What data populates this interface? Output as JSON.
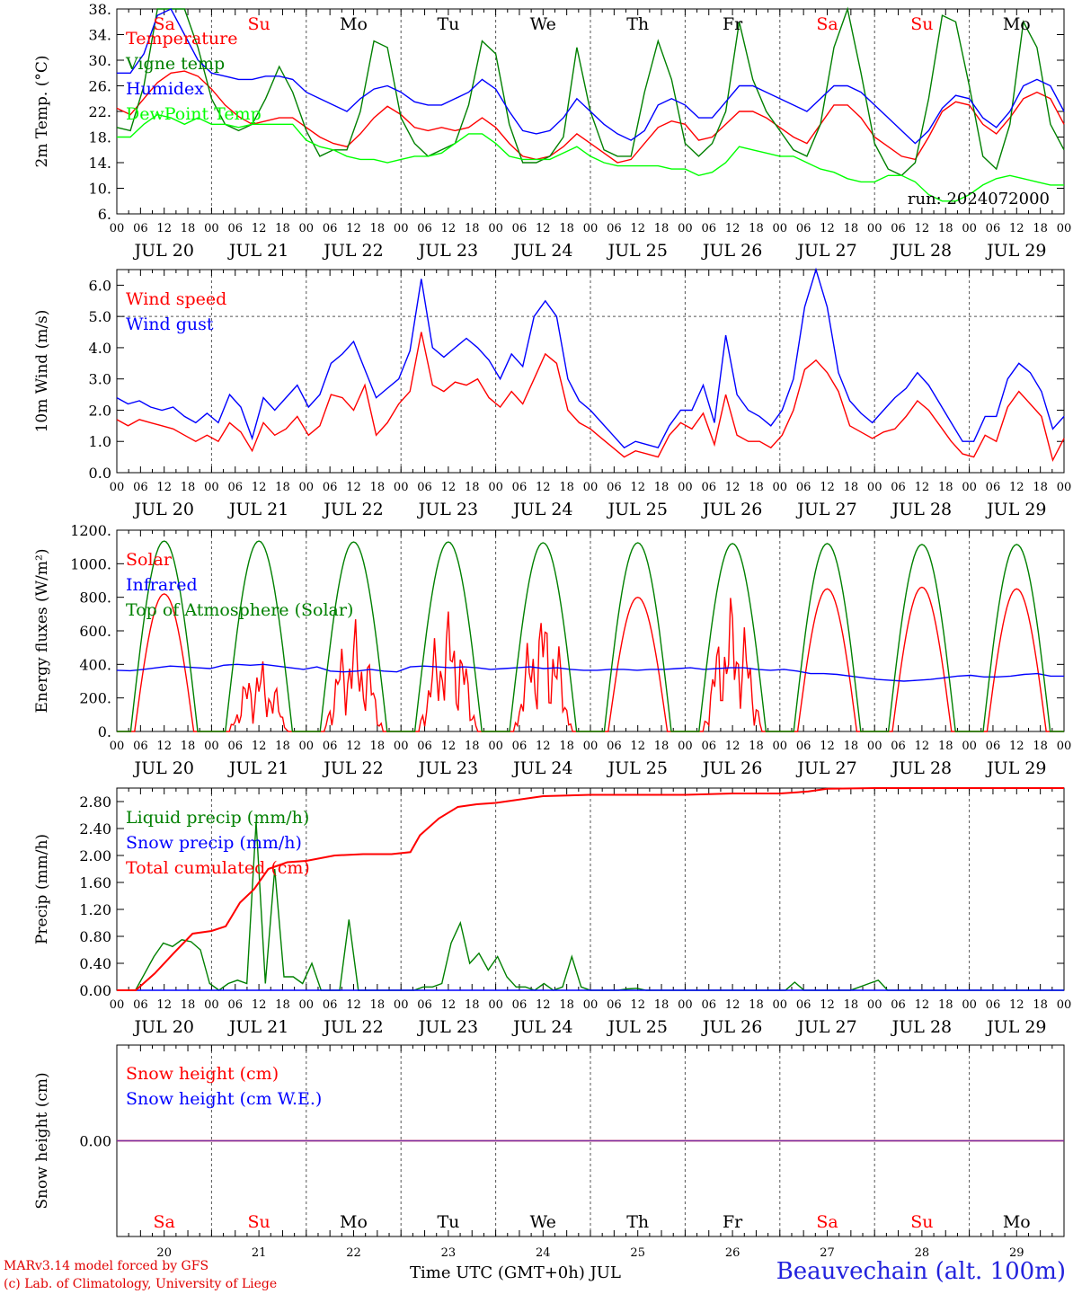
{
  "chart_data": [
    {
      "type": "line",
      "ylabel": "2m Temp. (°C)",
      "ylim": [
        6,
        38
      ],
      "yticks": [
        "6.",
        "10.",
        "14.",
        "18.",
        "22.",
        "26.",
        "30.",
        "34.",
        "38."
      ],
      "legend": [
        "Temperature",
        "Vigne temp",
        "Humidex",
        "DewPoint Temp"
      ],
      "legend_placement": "top-left",
      "run_label": "run: 2024072000",
      "dashed_level": null,
      "series": [
        {
          "name": "Temperature",
          "color": "#ff0000",
          "values": [
            22.5,
            21.5,
            24,
            26.5,
            28,
            28.3,
            27.5,
            25.5,
            23,
            21.2,
            20,
            20.5,
            21,
            21,
            19.5,
            18,
            17,
            16.5,
            18.5,
            21,
            22.8,
            21.5,
            19.5,
            19,
            19.5,
            19,
            19.5,
            21,
            19.5,
            17,
            15,
            14.5,
            15,
            16.5,
            18.5,
            17,
            15.5,
            14,
            14.5,
            17,
            19.5,
            20.5,
            20,
            17.5,
            18,
            20,
            22,
            22,
            21,
            19.5,
            18,
            17,
            20,
            23,
            23,
            21,
            18,
            16.5,
            15,
            14.5,
            18,
            22,
            23.5,
            23,
            20,
            18.5,
            21,
            24,
            25,
            24,
            20
          ]
        },
        {
          "name": "Vigne temp",
          "color": "#008000",
          "values": [
            19.5,
            19,
            26,
            38,
            38,
            38,
            32,
            24,
            20,
            19,
            20,
            24,
            29,
            25,
            19,
            15,
            16,
            16,
            22,
            33,
            32,
            21,
            17,
            15,
            16,
            17,
            23,
            33,
            31,
            20,
            14,
            14,
            15,
            18,
            32,
            22,
            16,
            15,
            15,
            25,
            33,
            27,
            17,
            15,
            17,
            22,
            36,
            27,
            22,
            19,
            16,
            15,
            20,
            32,
            38,
            28,
            17,
            13,
            12,
            14,
            24,
            37,
            36,
            26,
            15,
            13,
            20,
            36,
            32,
            20,
            16
          ]
        },
        {
          "name": "Humidex",
          "color": "#0000ff",
          "values": [
            28,
            28,
            31,
            37,
            38,
            34,
            30,
            28,
            27.5,
            27,
            27,
            27.5,
            27.5,
            27,
            25,
            24,
            23,
            22,
            24,
            25.5,
            26,
            25,
            23.5,
            23,
            23,
            24,
            25,
            27,
            25.5,
            22,
            19,
            18.5,
            19,
            21,
            24,
            22,
            20,
            18.5,
            17.5,
            19,
            23,
            24,
            23,
            21,
            21,
            23.5,
            26,
            26,
            25,
            24,
            23,
            22,
            24,
            26,
            26,
            25,
            23,
            21,
            19,
            17,
            19,
            22.5,
            24.5,
            24,
            21,
            19.5,
            22,
            26,
            27,
            26,
            22
          ]
        },
        {
          "name": "DewPoint Temp",
          "color": "#00ff00",
          "values": [
            18,
            18,
            20,
            21.5,
            21,
            20,
            21,
            20,
            20,
            19.5,
            20,
            20,
            20,
            20,
            17.5,
            16.5,
            16,
            15,
            14.5,
            14.5,
            14,
            14.5,
            15,
            15,
            15.5,
            17,
            18.5,
            18.5,
            17,
            15,
            14.5,
            14.5,
            14.5,
            15.5,
            16.5,
            15,
            14,
            13.5,
            13.5,
            13.5,
            13.5,
            13,
            13,
            12,
            12.5,
            14,
            16.5,
            16,
            15.5,
            15,
            15,
            14,
            13,
            12.5,
            11.5,
            11,
            11,
            12,
            12,
            11,
            9,
            8,
            8,
            9,
            10.5,
            11.5,
            12,
            11.5,
            11,
            10.5,
            10.5
          ]
        }
      ]
    },
    {
      "type": "line",
      "ylabel": "10m Wind (m/s)",
      "ylim": [
        0,
        6.5
      ],
      "yticks": [
        "0.0",
        "1.0",
        "2.0",
        "3.0",
        "4.0",
        "5.0",
        "6.0"
      ],
      "legend": [
        "Wind speed",
        "Wind gust"
      ],
      "legend_placement": "top-left",
      "dashed_level": 5.0,
      "series": [
        {
          "name": "Wind speed",
          "color": "#ff0000",
          "values": [
            1.7,
            1.5,
            1.7,
            1.6,
            1.5,
            1.4,
            1.2,
            1.0,
            1.2,
            1.0,
            1.6,
            1.3,
            0.7,
            1.6,
            1.2,
            1.4,
            1.8,
            1.2,
            1.5,
            2.5,
            2.4,
            2.0,
            2.8,
            1.2,
            1.6,
            2.2,
            2.6,
            4.5,
            2.8,
            2.6,
            2.9,
            2.8,
            3.0,
            2.4,
            2.1,
            2.6,
            2.2,
            3.0,
            3.8,
            3.5,
            2.0,
            1.6,
            1.4,
            1.1,
            0.8,
            0.5,
            0.7,
            0.6,
            0.5,
            1.2,
            1.6,
            1.4,
            1.9,
            0.9,
            2.5,
            1.2,
            1.0,
            1.0,
            0.8,
            1.2,
            2.0,
            3.3,
            3.6,
            3.2,
            2.6,
            1.5,
            1.3,
            1.1,
            1.3,
            1.4,
            1.8,
            2.3,
            2.0,
            1.5,
            1.0,
            0.6,
            0.5,
            1.2,
            1.0,
            2.1,
            2.6,
            2.2,
            1.8,
            0.4,
            1.1
          ]
        },
        {
          "name": "Wind gust",
          "color": "#0000ff",
          "values": [
            2.4,
            2.2,
            2.3,
            2.1,
            2.0,
            2.1,
            1.8,
            1.6,
            1.9,
            1.6,
            2.5,
            2.1,
            1.1,
            2.4,
            2.0,
            2.4,
            2.8,
            2.1,
            2.5,
            3.5,
            3.8,
            4.2,
            3.3,
            2.4,
            2.7,
            3.0,
            3.9,
            6.2,
            4.0,
            3.7,
            4.0,
            4.3,
            4.0,
            3.6,
            3.0,
            3.8,
            3.4,
            5.0,
            5.5,
            5.0,
            3.0,
            2.3,
            2.0,
            1.6,
            1.2,
            0.8,
            1.0,
            0.9,
            0.8,
            1.5,
            2.0,
            2.0,
            2.8,
            1.6,
            4.4,
            2.5,
            2.0,
            1.8,
            1.5,
            2.0,
            3.0,
            5.3,
            6.5,
            5.3,
            3.2,
            2.3,
            1.9,
            1.6,
            2.0,
            2.4,
            2.7,
            3.2,
            2.8,
            2.2,
            1.6,
            1.0,
            1.0,
            1.8,
            1.8,
            3.0,
            3.5,
            3.2,
            2.6,
            1.4,
            1.8
          ]
        }
      ]
    },
    {
      "type": "line",
      "ylabel": "Energy fluxes (W/m²)",
      "ylim": [
        0,
        1200
      ],
      "yticks": [
        "0.",
        "200.",
        "400.",
        "600.",
        "800.",
        "1000.",
        "1200."
      ],
      "legend": [
        "Solar",
        "Infrared",
        "Top of Atmosphere (Solar)"
      ],
      "legend_placement": "top-left",
      "dashed_level": null,
      "series": [
        {
          "name": "Solar",
          "color": "#ff0000",
          "diurnal_peaks": [
            820,
            450,
            680,
            760,
            800,
            800,
            840,
            850,
            860,
            850
          ],
          "irregular_days": [
            1,
            2,
            3,
            4,
            6
          ]
        },
        {
          "name": "Infrared",
          "color": "#0000ff",
          "values": [
            365,
            362,
            370,
            380,
            390,
            385,
            380,
            375,
            395,
            400,
            395,
            400,
            390,
            380,
            370,
            385,
            360,
            355,
            360,
            370,
            360,
            355,
            385,
            390,
            385,
            380,
            385,
            380,
            370,
            375,
            380,
            385,
            375,
            380,
            370,
            365,
            365,
            370,
            370,
            365,
            370,
            370,
            375,
            380,
            370,
            375,
            380,
            380,
            370,
            365,
            370,
            360,
            345,
            345,
            340,
            330,
            320,
            310,
            305,
            300,
            305,
            310,
            320,
            330,
            335,
            325,
            325,
            330,
            340,
            345,
            330,
            330
          ]
        },
        {
          "name": "Top of Atmosphere (Solar)",
          "color": "#008000",
          "diurnal_peaks": [
            1135,
            1135,
            1130,
            1130,
            1125,
            1125,
            1120,
            1120,
            1115,
            1115
          ]
        }
      ]
    },
    {
      "type": "line",
      "ylabel": "Precip (mm/h)",
      "ylim": [
        0,
        3.0
      ],
      "yticks": [
        "0.00",
        "0.40",
        "0.80",
        "1.20",
        "1.60",
        "2.00",
        "2.40",
        "2.80"
      ],
      "legend": [
        "Liquid precip (mm/h)",
        "Snow precip (mm/h)",
        "Total cumulated (cm)"
      ],
      "legend_placement": "top-left",
      "dashed_level": null,
      "series": [
        {
          "name": "Liquid precip (mm/h)",
          "color": "#008000",
          "values": [
            0,
            0,
            0,
            0.25,
            0.5,
            0.7,
            0.65,
            0.75,
            0.72,
            0.6,
            0.1,
            0,
            0.1,
            0.15,
            0.1,
            2.5,
            0.1,
            1.8,
            0.2,
            0.2,
            0.1,
            0.4,
            0,
            0,
            0,
            1.05,
            0,
            0,
            0,
            0,
            0,
            0,
            0,
            0.05,
            0.05,
            0.1,
            0.7,
            1.0,
            0.4,
            0.55,
            0.3,
            0.5,
            0.2,
            0.05,
            0.05,
            0,
            0.1,
            0,
            0.05,
            0.5,
            0.05,
            0,
            0,
            0,
            0,
            0.02,
            0.03,
            0,
            0,
            0,
            0,
            0,
            0,
            0,
            0,
            0,
            0,
            0,
            0,
            0,
            0,
            0,
            0,
            0.12,
            0,
            0,
            0,
            0,
            0,
            0,
            0.05,
            0.1,
            0.15,
            0,
            0,
            0,
            0,
            0,
            0,
            0,
            0,
            0,
            0,
            0,
            0,
            0,
            0,
            0,
            0,
            0,
            0,
            0,
            0
          ]
        },
        {
          "name": "Snow precip (mm/h)",
          "color": "#0000ff",
          "values": [
            0,
            0,
            0,
            0,
            0,
            0,
            0,
            0,
            0,
            0,
            0
          ]
        },
        {
          "name": "Total cumulated (cm)",
          "color": "#ff0000",
          "x_days": [
            0,
            0.2,
            0.4,
            0.6,
            0.8,
            1.0,
            1.15,
            1.3,
            1.45,
            1.6,
            1.8,
            2.0,
            2.3,
            2.6,
            2.9,
            3.1,
            3.2,
            3.4,
            3.6,
            3.8,
            4.0,
            4.2,
            4.5,
            5.0,
            6.0,
            6.5,
            7.0,
            7.3,
            7.5,
            8.0,
            9.0,
            10.0
          ],
          "values": [
            0,
            0,
            0.25,
            0.55,
            0.84,
            0.88,
            0.95,
            1.3,
            1.5,
            1.8,
            1.9,
            1.92,
            2.0,
            2.02,
            2.02,
            2.05,
            2.3,
            2.55,
            2.72,
            2.76,
            2.78,
            2.82,
            2.88,
            2.9,
            2.9,
            2.92,
            2.92,
            2.95,
            2.99,
            3.0,
            3.0,
            3.0
          ]
        }
      ]
    },
    {
      "type": "line",
      "ylabel": "Snow height (cm)",
      "ylim": [
        -1,
        1
      ],
      "yticks": [
        "0.00"
      ],
      "legend": [
        "Snow height (cm)",
        "Snow height (cm W.E.)"
      ],
      "legend_placement": "top-left",
      "dashed_level": null,
      "series": [
        {
          "name": "Snow height (cm)",
          "color": "#ff0000",
          "values": [
            0,
            0
          ]
        },
        {
          "name": "Snow height (cm W.E.)",
          "color": "#0000ff",
          "values": [
            0,
            0
          ]
        }
      ]
    }
  ],
  "axis": {
    "hour_ticks": [
      "00",
      "06",
      "12",
      "18"
    ],
    "end_tick": "00",
    "date_labels": [
      "JUL 20",
      "JUL 21",
      "JUL 22",
      "JUL 23",
      "JUL 24",
      "JUL 25",
      "JUL 26",
      "JUL 27",
      "JUL 28",
      "JUL 29"
    ],
    "weekdays": [
      "Sa",
      "Su",
      "Mo",
      "Tu",
      "We",
      "Th",
      "Fr",
      "Sa",
      "Su",
      "Mo"
    ],
    "weekday_colors": [
      "#ff0000",
      "#ff0000",
      "#000000",
      "#000000",
      "#000000",
      "#000000",
      "#000000",
      "#ff0000",
      "#ff0000",
      "#000000"
    ],
    "day_numbers": [
      "20",
      "21",
      "22",
      "23",
      "24",
      "25",
      "26",
      "27",
      "28",
      "29"
    ]
  },
  "footer": {
    "model_line": "MARv3.14 model forced by GFS",
    "copyright_line": "(c) Lab. of Climatology, University of Liege",
    "time_label": "Time UTC (GMT+0h) JUL",
    "station": "Beauvechain (alt. 100m)"
  }
}
